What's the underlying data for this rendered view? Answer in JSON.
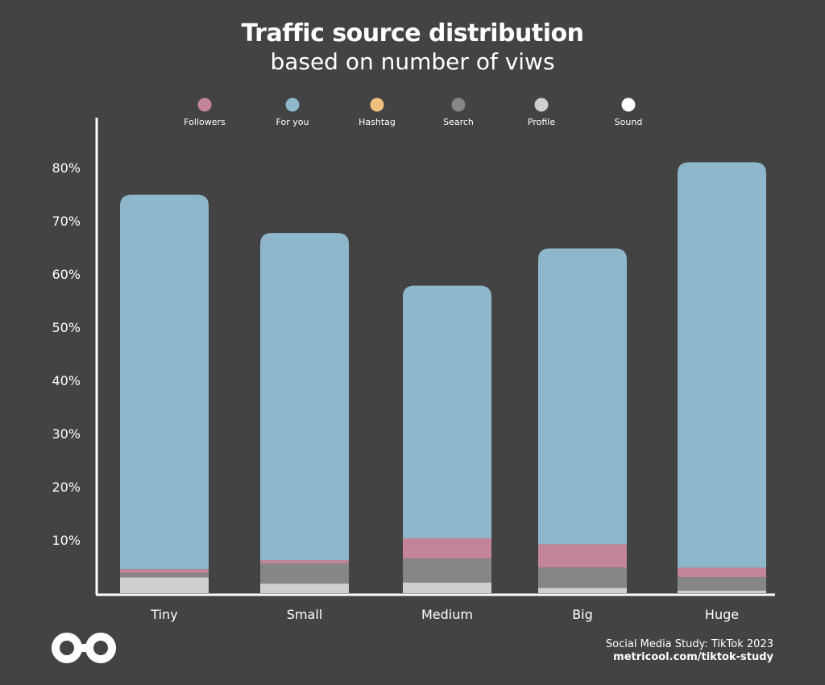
{
  "header": {
    "title": "Traffic source distribution",
    "subtitle": "based on number of viws"
  },
  "footer": {
    "source": "Social Media Study: TikTok 2023",
    "url": "metricool.com/tiktok-study"
  },
  "logo": {
    "icon": "infinity-logo-icon"
  },
  "colors": {
    "background": "#434343",
    "axis": "#ffffff",
    "text": "#ffffff",
    "Followers": "#c4849a",
    "For you": "#8fb7cb",
    "Hashtag": "#f2c07e",
    "Search": "#868686",
    "Profile": "#cfcfcf",
    "Sound": "#ffffff"
  },
  "chart_data": {
    "type": "bar",
    "stacked": true,
    "title": "Traffic source distribution",
    "subtitle": "based on number of viws",
    "categories": [
      "Tiny",
      "Small",
      "Medium",
      "Big",
      "Huge"
    ],
    "y_ticks": [
      "10%",
      "20%",
      "30%",
      "40%",
      "50%",
      "60%",
      "70%",
      "80%"
    ],
    "ylim": [
      0,
      90
    ],
    "legend_position": "top",
    "grid": false,
    "series": [
      {
        "name": "Sound",
        "values": [
          0,
          0,
          0,
          0,
          0
        ]
      },
      {
        "name": "Profile",
        "values": [
          3,
          1.8,
          2,
          1,
          0.5
        ]
      },
      {
        "name": "Search",
        "values": [
          0.8,
          3.8,
          4.5,
          3.8,
          2.5
        ]
      },
      {
        "name": "Hashtag",
        "values": [
          0,
          0,
          0,
          0,
          0
        ]
      },
      {
        "name": "Followers",
        "values": [
          0.7,
          0.6,
          3.8,
          4.4,
          1.8
        ]
      },
      {
        "name": "For you",
        "values": [
          70.4,
          61.5,
          47.5,
          55.6,
          76.2
        ]
      }
    ],
    "legend_order": [
      "Followers",
      "For you",
      "Hashtag",
      "Search",
      "Profile",
      "Sound"
    ]
  }
}
